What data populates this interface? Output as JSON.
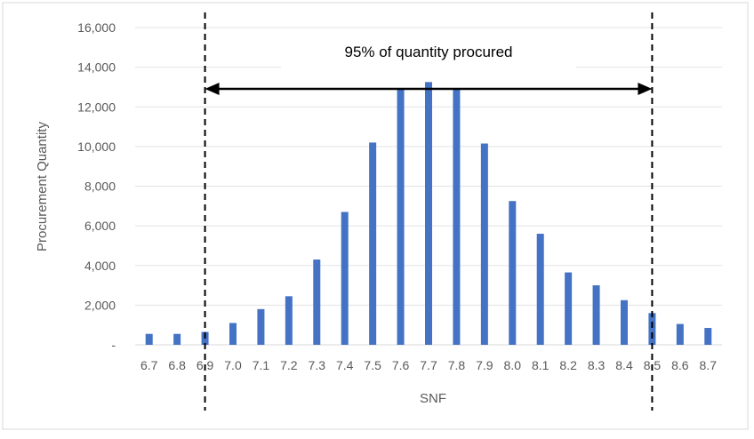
{
  "chart_data": {
    "type": "bar",
    "title": "",
    "xlabel": "SNF",
    "ylabel": "Procurement Quantity",
    "ylim": [
      0,
      16000
    ],
    "yticks": [
      "-",
      "2,000",
      "4,000",
      "6,000",
      "8,000",
      "10,000",
      "12,000",
      "14,000",
      "16,000"
    ],
    "categories": [
      "6.7",
      "6.8",
      "6.9",
      "7.0",
      "7.1",
      "7.2",
      "7.3",
      "7.4",
      "7.5",
      "7.6",
      "7.7",
      "7.8",
      "7.9",
      "8.0",
      "8.1",
      "8.2",
      "8.3",
      "8.4",
      "8.5",
      "8.6",
      "8.7"
    ],
    "values": [
      550,
      550,
      650,
      1100,
      1800,
      2450,
      4300,
      6700,
      10200,
      12950,
      13250,
      12950,
      10150,
      7250,
      5600,
      3650,
      3000,
      2250,
      1600,
      1050,
      850
    ],
    "bar_color": "#4472C4",
    "grid": true,
    "legend": "none",
    "annotation": {
      "text": "95% of quantity procured",
      "range_start": "6.9",
      "range_end": "8.5"
    }
  }
}
